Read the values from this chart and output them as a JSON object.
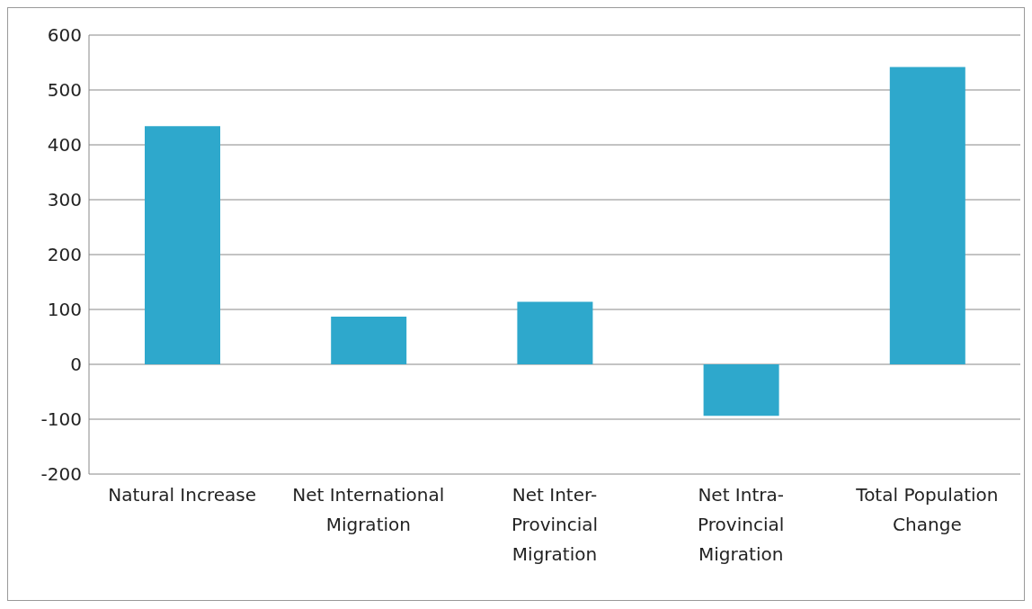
{
  "chart_data": {
    "type": "bar",
    "categories": [
      "Natural Increase",
      "Net International Migration",
      "Net Inter-Provincial Migration",
      "Net Intra-Provincial Migration",
      "Total Population Change"
    ],
    "values": [
      434,
      87,
      114,
      -94,
      542
    ],
    "color": "#2ea8cc",
    "ylim": [
      -200,
      600
    ],
    "yticks": [
      -200,
      -100,
      0,
      100,
      200,
      300,
      400,
      500,
      600
    ],
    "grid": "y",
    "legend": false
  }
}
